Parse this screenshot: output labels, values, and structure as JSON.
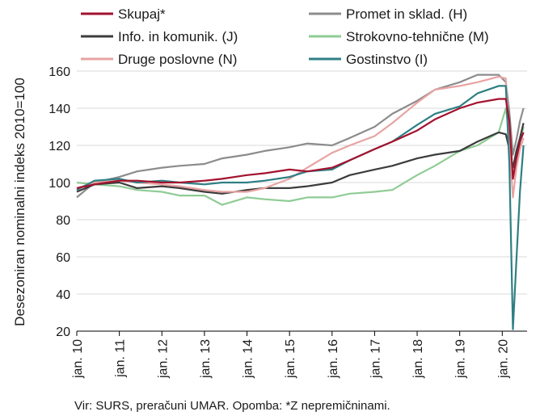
{
  "chart_data": {
    "type": "line",
    "title": "",
    "xlabel": "",
    "ylabel": "Desezoniran nominalni indeks 2010=100",
    "ylim": [
      20,
      160
    ],
    "yticks": [
      20,
      40,
      60,
      80,
      100,
      120,
      140,
      160
    ],
    "xlim": [
      "2010-01",
      "2020-08"
    ],
    "xticks": [
      "jan. 10",
      "jan. 11",
      "jan. 12",
      "jan. 13",
      "jan. 14",
      "jan. 15",
      "jan. 16",
      "jan. 17",
      "jan. 18",
      "jan. 19",
      "jan. 20"
    ],
    "grid": "horizontal",
    "legend": "top",
    "source": "Vir: SURS, preračuni UMAR. Opomba: *Z nepremičninami.",
    "series": [
      {
        "name": "Skupaj*",
        "color": "#a3122e",
        "points": [
          [
            "2010-01",
            97
          ],
          [
            "2010-06",
            99
          ],
          [
            "2011-01",
            101
          ],
          [
            "2011-06",
            101
          ],
          [
            "2012-01",
            100
          ],
          [
            "2012-06",
            100
          ],
          [
            "2013-01",
            101
          ],
          [
            "2013-06",
            102
          ],
          [
            "2014-01",
            104
          ],
          [
            "2014-06",
            105
          ],
          [
            "2015-01",
            107
          ],
          [
            "2015-06",
            106
          ],
          [
            "2016-01",
            108
          ],
          [
            "2016-06",
            112
          ],
          [
            "2017-01",
            118
          ],
          [
            "2017-06",
            122
          ],
          [
            "2018-01",
            128
          ],
          [
            "2018-06",
            134
          ],
          [
            "2019-01",
            140
          ],
          [
            "2019-06",
            143
          ],
          [
            "2019-12",
            145
          ],
          [
            "2020-02",
            145
          ],
          [
            "2020-03",
            133
          ],
          [
            "2020-04",
            102
          ],
          [
            "2020-05",
            113
          ],
          [
            "2020-06",
            122
          ],
          [
            "2020-07",
            127
          ]
        ]
      },
      {
        "name": "Promet in sklad. (H)",
        "color": "#8c8c8c",
        "points": [
          [
            "2010-01",
            92
          ],
          [
            "2010-06",
            100
          ],
          [
            "2011-01",
            103
          ],
          [
            "2011-06",
            106
          ],
          [
            "2012-01",
            108
          ],
          [
            "2012-06",
            109
          ],
          [
            "2013-01",
            110
          ],
          [
            "2013-06",
            113
          ],
          [
            "2014-01",
            115
          ],
          [
            "2014-06",
            117
          ],
          [
            "2015-01",
            119
          ],
          [
            "2015-06",
            121
          ],
          [
            "2016-01",
            120
          ],
          [
            "2016-06",
            124
          ],
          [
            "2017-01",
            130
          ],
          [
            "2017-06",
            137
          ],
          [
            "2018-01",
            144
          ],
          [
            "2018-06",
            150
          ],
          [
            "2019-01",
            154
          ],
          [
            "2019-06",
            158
          ],
          [
            "2019-12",
            158
          ],
          [
            "2020-02",
            154
          ],
          [
            "2020-03",
            138
          ],
          [
            "2020-04",
            115
          ],
          [
            "2020-05",
            123
          ],
          [
            "2020-06",
            133
          ],
          [
            "2020-07",
            140
          ]
        ]
      },
      {
        "name": "Info. in komunik. (J)",
        "color": "#3c3c3c",
        "points": [
          [
            "2010-01",
            95
          ],
          [
            "2010-06",
            99
          ],
          [
            "2011-01",
            100
          ],
          [
            "2011-06",
            97
          ],
          [
            "2012-01",
            98
          ],
          [
            "2012-06",
            97
          ],
          [
            "2013-01",
            95
          ],
          [
            "2013-06",
            94
          ],
          [
            "2014-01",
            96
          ],
          [
            "2014-06",
            97
          ],
          [
            "2015-01",
            97
          ],
          [
            "2015-06",
            98
          ],
          [
            "2016-01",
            100
          ],
          [
            "2016-06",
            104
          ],
          [
            "2017-01",
            107
          ],
          [
            "2017-06",
            109
          ],
          [
            "2018-01",
            113
          ],
          [
            "2018-06",
            115
          ],
          [
            "2019-01",
            117
          ],
          [
            "2019-06",
            122
          ],
          [
            "2019-12",
            127
          ],
          [
            "2020-02",
            126
          ],
          [
            "2020-03",
            118
          ],
          [
            "2020-04",
            108
          ],
          [
            "2020-05",
            117
          ],
          [
            "2020-06",
            124
          ],
          [
            "2020-07",
            132
          ]
        ]
      },
      {
        "name": "Strokovno-tehnične (M)",
        "color": "#8fcc95",
        "points": [
          [
            "2010-01",
            100
          ],
          [
            "2010-06",
            99
          ],
          [
            "2011-01",
            98
          ],
          [
            "2011-06",
            96
          ],
          [
            "2012-01",
            95
          ],
          [
            "2012-06",
            93
          ],
          [
            "2013-01",
            93
          ],
          [
            "2013-06",
            88
          ],
          [
            "2014-01",
            92
          ],
          [
            "2014-06",
            91
          ],
          [
            "2015-01",
            90
          ],
          [
            "2015-06",
            92
          ],
          [
            "2016-01",
            92
          ],
          [
            "2016-06",
            94
          ],
          [
            "2017-01",
            95
          ],
          [
            "2017-06",
            96
          ],
          [
            "2018-01",
            104
          ],
          [
            "2018-06",
            109
          ],
          [
            "2019-01",
            117
          ],
          [
            "2019-06",
            120
          ],
          [
            "2019-12",
            127
          ],
          [
            "2020-02",
            140
          ],
          [
            "2020-03",
            126
          ],
          [
            "2020-04",
            102
          ],
          [
            "2020-05",
            113
          ],
          [
            "2020-06",
            121
          ],
          [
            "2020-07",
            130
          ]
        ]
      },
      {
        "name": "Druge poslovne (N)",
        "color": "#e8a3a3",
        "points": [
          [
            "2010-01",
            97
          ],
          [
            "2010-06",
            100
          ],
          [
            "2011-01",
            101
          ],
          [
            "2011-06",
            100
          ],
          [
            "2012-01",
            99
          ],
          [
            "2012-06",
            98
          ],
          [
            "2013-01",
            96
          ],
          [
            "2013-06",
            95
          ],
          [
            "2014-01",
            95
          ],
          [
            "2014-06",
            97
          ],
          [
            "2015-01",
            102
          ],
          [
            "2015-06",
            108
          ],
          [
            "2016-01",
            116
          ],
          [
            "2016-06",
            120
          ],
          [
            "2017-01",
            125
          ],
          [
            "2017-06",
            132
          ],
          [
            "2018-01",
            143
          ],
          [
            "2018-06",
            150
          ],
          [
            "2019-01",
            152
          ],
          [
            "2019-06",
            154
          ],
          [
            "2019-12",
            157
          ],
          [
            "2020-02",
            156
          ],
          [
            "2020-03",
            120
          ],
          [
            "2020-04",
            92
          ],
          [
            "2020-05",
            108
          ],
          [
            "2020-06",
            118
          ],
          [
            "2020-07",
            124
          ]
        ]
      },
      {
        "name": "Gostinstvo (I)",
        "color": "#2e7f84",
        "points": [
          [
            "2010-01",
            96
          ],
          [
            "2010-06",
            101
          ],
          [
            "2011-01",
            102
          ],
          [
            "2011-06",
            100
          ],
          [
            "2012-01",
            101
          ],
          [
            "2012-06",
            100
          ],
          [
            "2013-01",
            99
          ],
          [
            "2013-06",
            100
          ],
          [
            "2014-01",
            100
          ],
          [
            "2014-06",
            101
          ],
          [
            "2015-01",
            103
          ],
          [
            "2015-06",
            106
          ],
          [
            "2016-01",
            107
          ],
          [
            "2016-06",
            112
          ],
          [
            "2017-01",
            118
          ],
          [
            "2017-06",
            122
          ],
          [
            "2018-01",
            131
          ],
          [
            "2018-06",
            137
          ],
          [
            "2019-01",
            141
          ],
          [
            "2019-06",
            148
          ],
          [
            "2019-12",
            152
          ],
          [
            "2020-02",
            152
          ],
          [
            "2020-03",
            110
          ],
          [
            "2020-04",
            21
          ],
          [
            "2020-05",
            58
          ],
          [
            "2020-06",
            95
          ],
          [
            "2020-07",
            120
          ]
        ]
      }
    ]
  }
}
